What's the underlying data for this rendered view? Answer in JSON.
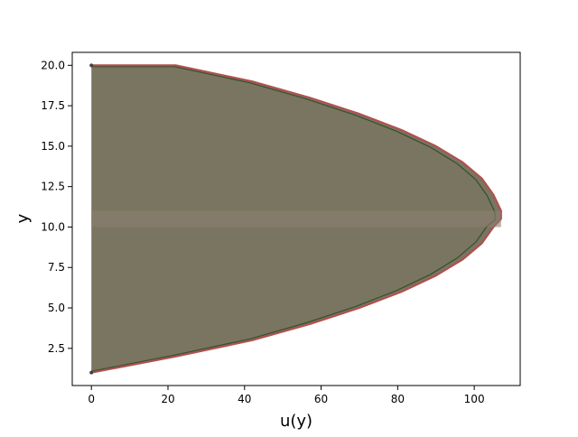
{
  "chart_data": {
    "type": "line",
    "title": "",
    "xlabel": "u(y)",
    "ylabel": "y",
    "xlim": [
      -5,
      112
    ],
    "ylim": [
      0.2,
      20.8
    ],
    "x_ticks": [
      0,
      20,
      40,
      60,
      80,
      100
    ],
    "x_tick_labels": [
      "0",
      "20",
      "40",
      "60",
      "80",
      "100"
    ],
    "y_ticks": [
      2.5,
      5.0,
      7.5,
      10.0,
      12.5,
      15.0,
      17.5,
      20.0
    ],
    "y_tick_labels": [
      "2.5",
      "5.0",
      "7.5",
      "10.0",
      "12.5",
      "15.0",
      "17.5",
      "20.0"
    ],
    "grid": false,
    "legend": "none",
    "series": [
      {
        "description_kind": "velocity profile (outer envelope)",
        "color": "#b05050",
        "points": [
          [
            0,
            1
          ],
          [
            22,
            2
          ],
          [
            42,
            3
          ],
          [
            57,
            4
          ],
          [
            70,
            5
          ],
          [
            81,
            6
          ],
          [
            90,
            7
          ],
          [
            97,
            8
          ],
          [
            102,
            9
          ],
          [
            105,
            10
          ],
          [
            107,
            10.5
          ],
          [
            107,
            11
          ],
          [
            105,
            12
          ],
          [
            102,
            13
          ],
          [
            97,
            14
          ],
          [
            90,
            15
          ],
          [
            81,
            16
          ],
          [
            70,
            17
          ],
          [
            57,
            18
          ],
          [
            42,
            19
          ],
          [
            22,
            20
          ],
          [
            0,
            20
          ]
        ]
      }
    ],
    "fill_color": "#7a7560",
    "inner_edge_color": "#1f4a1f"
  }
}
